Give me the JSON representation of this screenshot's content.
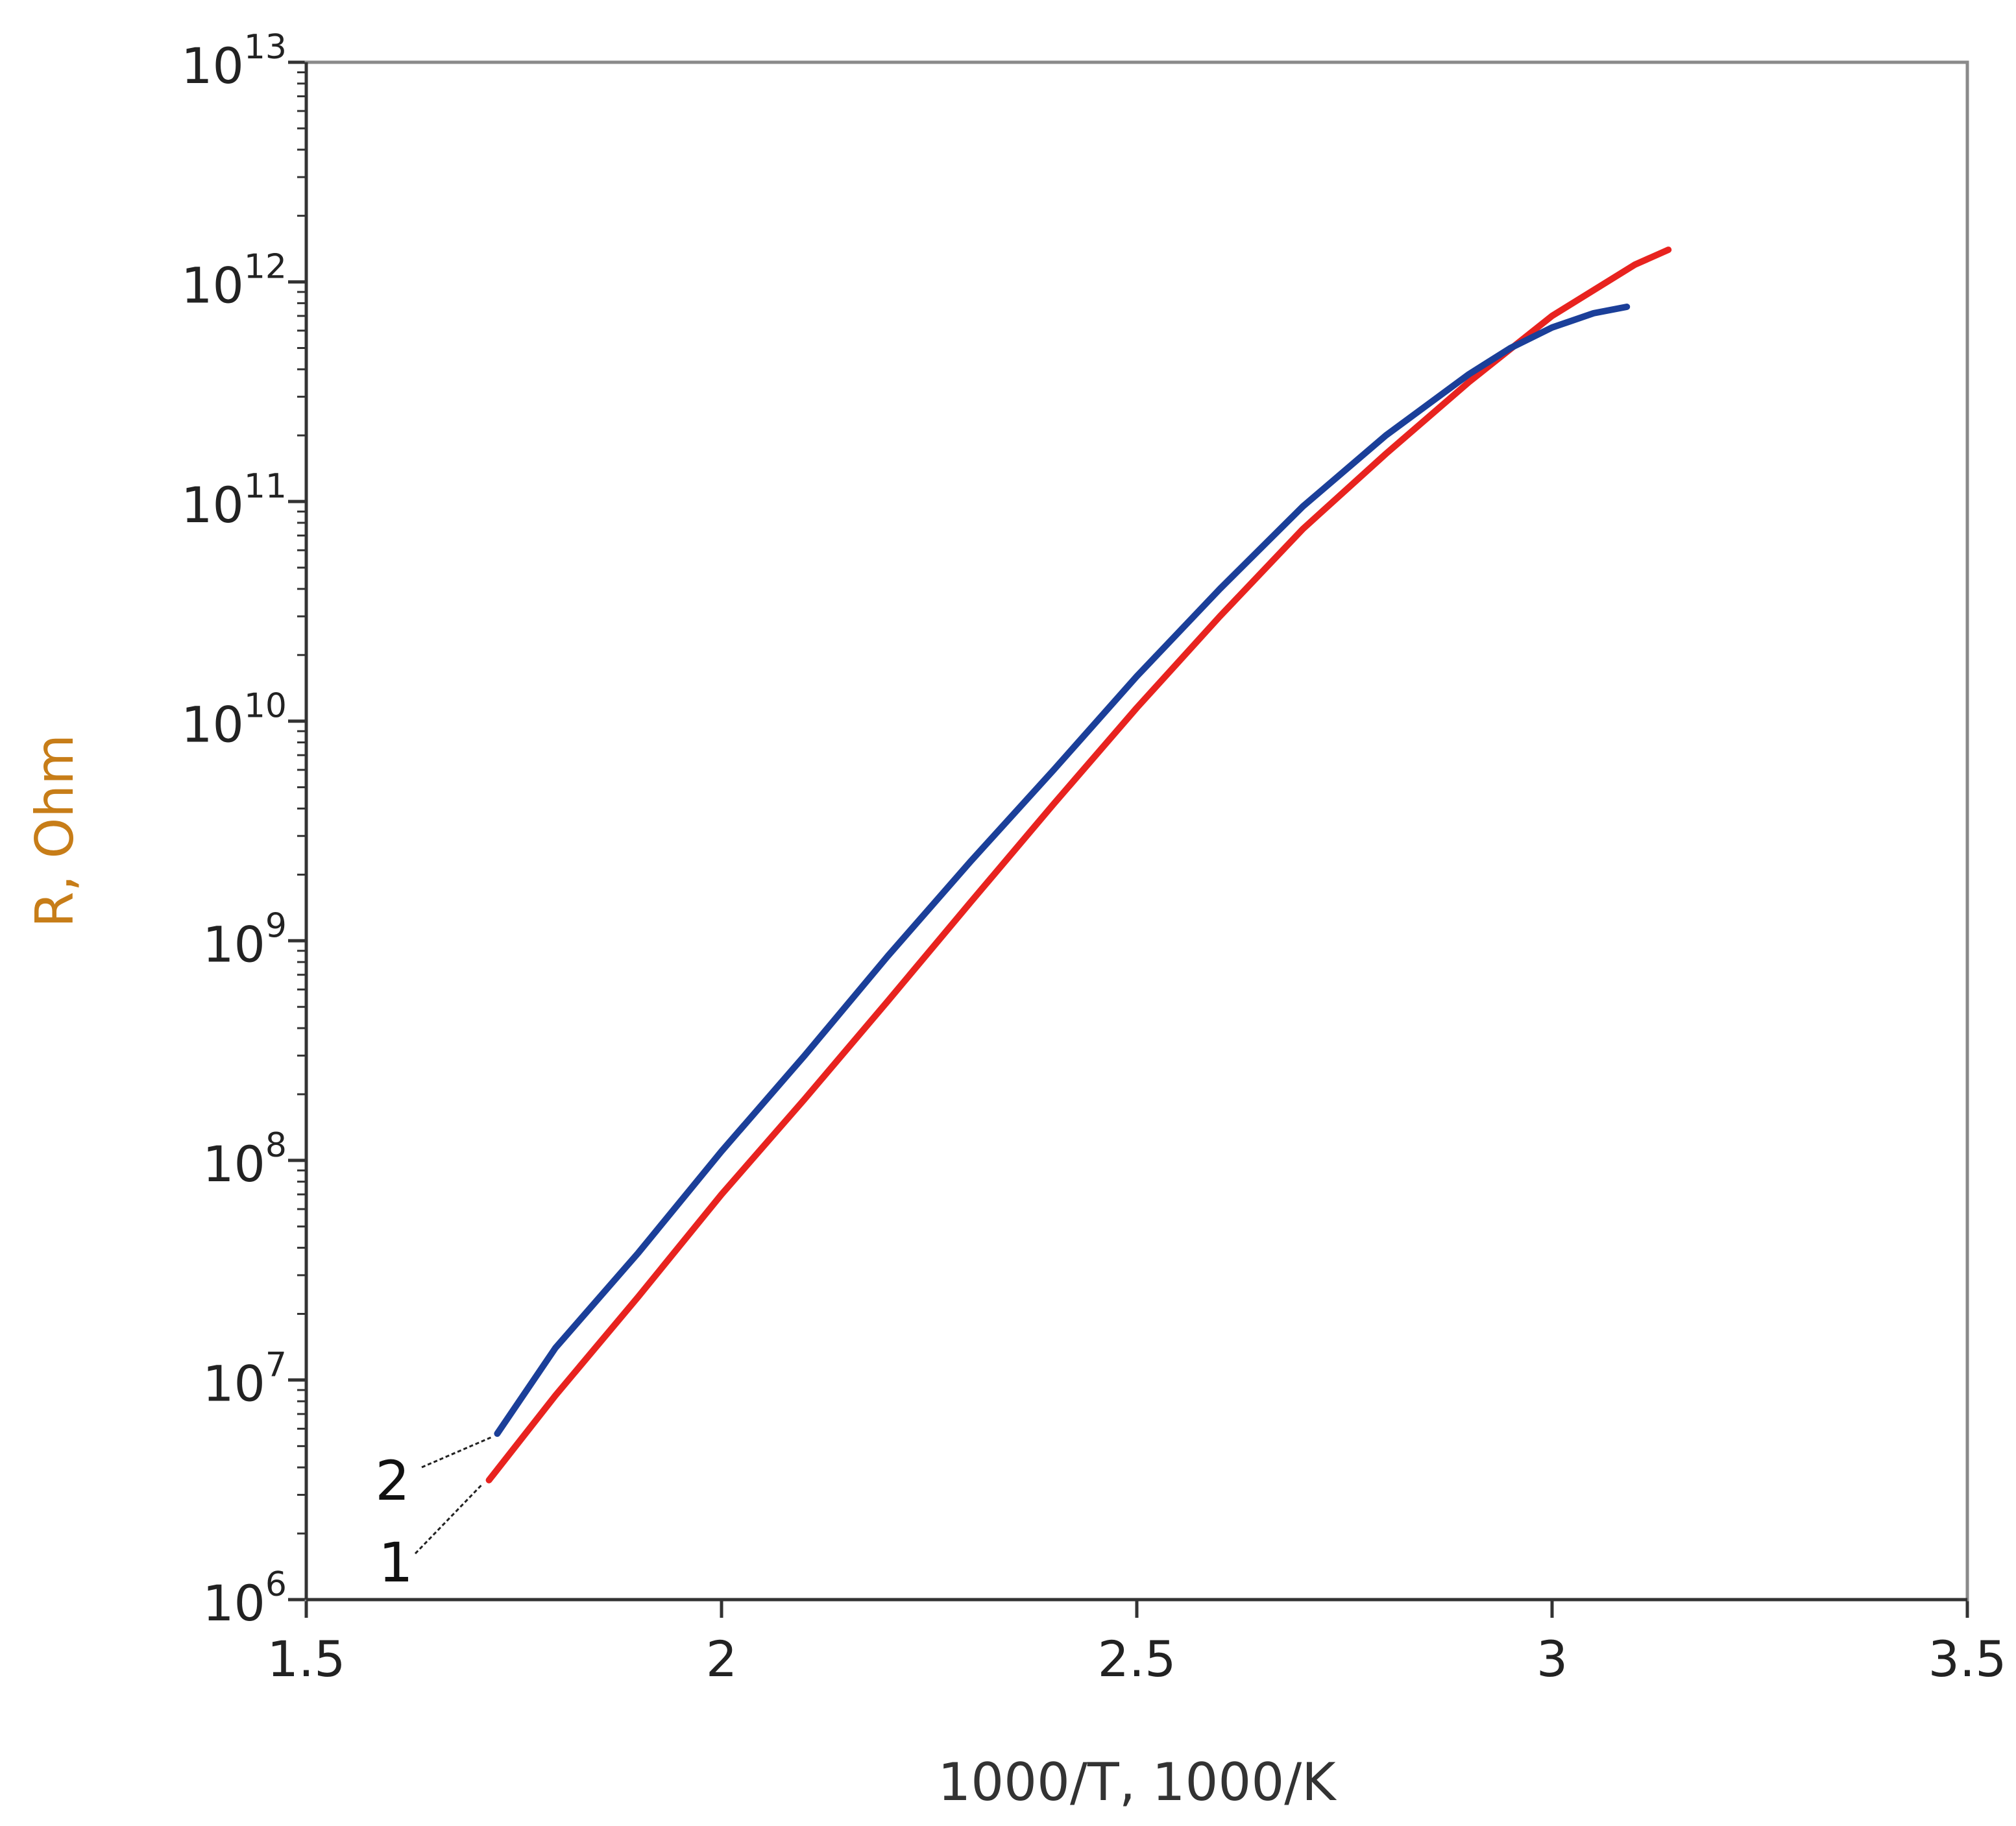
{
  "chart_data": {
    "type": "line",
    "title": "",
    "xlabel": "1000/T, 1000/K",
    "ylabel": "R, Ohm",
    "x_scale": "linear",
    "y_scale": "log",
    "xlim": [
      1.5,
      3.5
    ],
    "ylim": [
      1000000,
      10000000000000
    ],
    "x_ticks": [
      {
        "value": 1.5,
        "label": "1.5"
      },
      {
        "value": 2.0,
        "label": "2"
      },
      {
        "value": 2.5,
        "label": "2.5"
      },
      {
        "value": 3.0,
        "label": "3"
      },
      {
        "value": 3.5,
        "label": "3.5"
      }
    ],
    "y_ticks": [
      {
        "value": 1000000,
        "base": "10",
        "exp": "6"
      },
      {
        "value": 10000000,
        "base": "10",
        "exp": "7"
      },
      {
        "value": 100000000,
        "base": "10",
        "exp": "8"
      },
      {
        "value": 1000000000,
        "base": "10",
        "exp": "9"
      },
      {
        "value": 10000000000,
        "base": "10",
        "exp": "10"
      },
      {
        "value": 100000000000,
        "base": "10",
        "exp": "11"
      },
      {
        "value": 1000000000000,
        "base": "10",
        "exp": "12"
      },
      {
        "value": 10000000000000,
        "base": "10",
        "exp": "13"
      }
    ],
    "grid": false,
    "legend": "none",
    "series": [
      {
        "label": "1",
        "color": "#e8231f",
        "points": [
          [
            1.72,
            3500000
          ],
          [
            1.8,
            8500000
          ],
          [
            1.9,
            24000000
          ],
          [
            2.0,
            70000000
          ],
          [
            2.1,
            190000000
          ],
          [
            2.2,
            530000000
          ],
          [
            2.3,
            1500000000
          ],
          [
            2.4,
            4200000000
          ],
          [
            2.5,
            11500000000
          ],
          [
            2.6,
            30000000000
          ],
          [
            2.7,
            75000000000
          ],
          [
            2.8,
            165000000000
          ],
          [
            2.9,
            350000000000
          ],
          [
            3.0,
            700000000000
          ],
          [
            3.1,
            1200000000000
          ],
          [
            3.14,
            1400000000000
          ]
        ]
      },
      {
        "label": "2",
        "color": "#1b3f99",
        "points": [
          [
            1.73,
            5700000
          ],
          [
            1.8,
            14000000
          ],
          [
            1.9,
            38000000
          ],
          [
            2.0,
            110000000
          ],
          [
            2.1,
            300000000
          ],
          [
            2.2,
            850000000
          ],
          [
            2.3,
            2300000000
          ],
          [
            2.4,
            6000000000
          ],
          [
            2.5,
            16000000000
          ],
          [
            2.6,
            40000000000
          ],
          [
            2.7,
            95000000000
          ],
          [
            2.8,
            200000000000
          ],
          [
            2.9,
            380000000000
          ],
          [
            2.95,
            500000000000
          ],
          [
            3.0,
            620000000000
          ],
          [
            3.05,
            720000000000
          ],
          [
            3.09,
            770000000000
          ]
        ]
      }
    ],
    "annotations": [
      {
        "text": "2",
        "points_to_series": "2"
      },
      {
        "text": "1",
        "points_to_series": "1"
      }
    ]
  }
}
